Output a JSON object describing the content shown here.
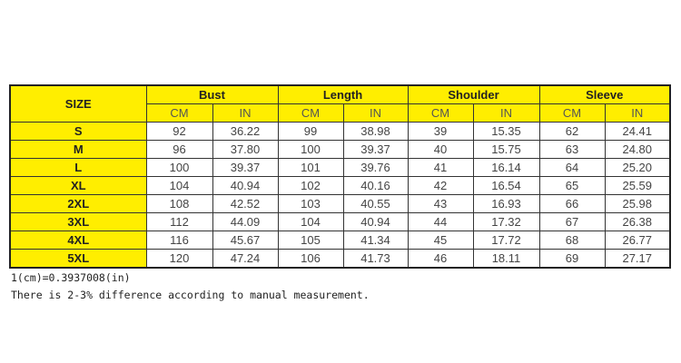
{
  "table": {
    "size_header": "SIZE",
    "groups": [
      "Bust",
      "Length",
      "Shoulder",
      "Sleeve"
    ],
    "units": [
      "CM",
      "IN"
    ],
    "rows": [
      {
        "size": "S",
        "values": [
          "92",
          "36.22",
          "99",
          "38.98",
          "39",
          "15.35",
          "62",
          "24.41"
        ]
      },
      {
        "size": "M",
        "values": [
          "96",
          "37.80",
          "100",
          "39.37",
          "40",
          "15.75",
          "63",
          "24.80"
        ]
      },
      {
        "size": "L",
        "values": [
          "100",
          "39.37",
          "101",
          "39.76",
          "41",
          "16.14",
          "64",
          "25.20"
        ]
      },
      {
        "size": "XL",
        "values": [
          "104",
          "40.94",
          "102",
          "40.16",
          "42",
          "16.54",
          "65",
          "25.59"
        ]
      },
      {
        "size": "2XL",
        "values": [
          "108",
          "42.52",
          "103",
          "40.55",
          "43",
          "16.93",
          "66",
          "25.98"
        ]
      },
      {
        "size": "3XL",
        "values": [
          "112",
          "44.09",
          "104",
          "40.94",
          "44",
          "17.32",
          "67",
          "26.38"
        ]
      },
      {
        "size": "4XL",
        "values": [
          "116",
          "45.67",
          "105",
          "41.34",
          "45",
          "17.72",
          "68",
          "26.77"
        ]
      },
      {
        "size": "5XL",
        "values": [
          "120",
          "47.24",
          "106",
          "41.73",
          "46",
          "18.11",
          "69",
          "27.17"
        ]
      }
    ]
  },
  "notes": {
    "conversion": "1(cm)=0.3937008(in)",
    "disclaimer": "There is 2-3% difference according to manual measurement."
  },
  "colors": {
    "header_bg": "#ffee00"
  }
}
